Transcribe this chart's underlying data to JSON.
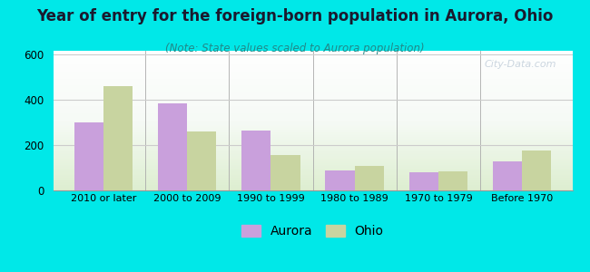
{
  "categories": [
    "2010 or later",
    "2000 to 2009",
    "1990 to 1999",
    "1980 to 1989",
    "1970 to 1979",
    "Before 1970"
  ],
  "aurora_values": [
    300,
    385,
    265,
    90,
    80,
    130
  ],
  "ohio_values": [
    460,
    260,
    155,
    110,
    85,
    175
  ],
  "aurora_color": "#c9a0dc",
  "ohio_color": "#c8d4a0",
  "title": "Year of entry for the foreign-born population in Aurora, Ohio",
  "subtitle": "(Note: State values scaled to Aurora population)",
  "xlabel": "",
  "ylabel": "",
  "ylim": [
    0,
    620
  ],
  "yticks": [
    0,
    200,
    400,
    600
  ],
  "background_color": "#00e8e8",
  "legend_labels": [
    "Aurora",
    "Ohio"
  ],
  "bar_width": 0.35,
  "title_fontsize": 12,
  "title_color": "#1a1a2e",
  "subtitle_fontsize": 8.5,
  "subtitle_color": "#228888",
  "watermark_text": "City-Data.com"
}
